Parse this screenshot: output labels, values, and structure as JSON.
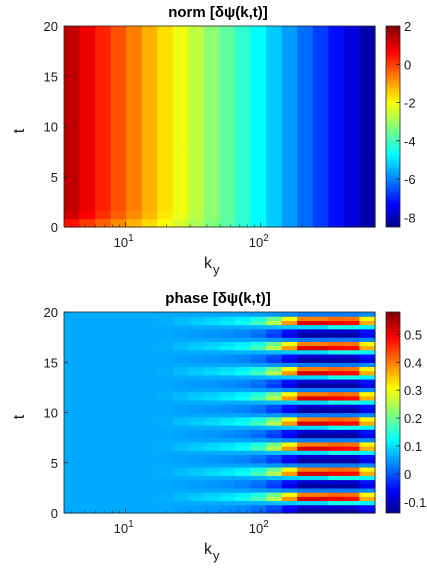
{
  "chart_data": [
    {
      "type": "heatmap",
      "title": "norm [δψ(k,t)]",
      "xlabel": "k",
      "xlabel_sub": "y",
      "ylabel": "t",
      "x_scale": "log",
      "xlim": [
        3.5,
        700
      ],
      "ylim": [
        0,
        20
      ],
      "x_ticks": [
        {
          "value": 10,
          "base": "10",
          "exp": "1"
        },
        {
          "value": 100,
          "base": "10",
          "exp": "2"
        }
      ],
      "y_ticks": [
        0,
        5,
        10,
        15,
        20
      ],
      "colorbar": {
        "range": [
          -8.5,
          2
        ],
        "ticks": [
          "2",
          "0",
          "-2",
          "-4",
          "-6",
          "-8"
        ],
        "values": [
          2,
          0,
          -2,
          -4,
          -6,
          -8
        ]
      },
      "colormap": "jet",
      "description_of_field": {
        "value_at_k_min": 1.6,
        "value_at_k_max": -8.3,
        "initial_transient_t": 1.5
      }
    },
    {
      "type": "heatmap",
      "title": "phase [δψ(k,t)]",
      "xlabel": "k",
      "xlabel_sub": "y",
      "ylabel": "t",
      "x_scale": "log",
      "xlim": [
        3.5,
        700
      ],
      "ylim": [
        0,
        20
      ],
      "x_ticks": [
        {
          "value": 10,
          "base": "10",
          "exp": "1"
        },
        {
          "value": 100,
          "base": "10",
          "exp": "2"
        }
      ],
      "y_ticks": [
        0,
        5,
        10,
        15,
        20
      ],
      "colorbar": {
        "range": [
          -0.14,
          0.58
        ],
        "ticks": [
          "0.5",
          "0.4",
          "0.3",
          "0.2",
          "0.1",
          "0",
          "-0.1"
        ],
        "values": [
          0.5,
          0.4,
          0.3,
          0.2,
          0.1,
          0,
          -0.1
        ]
      },
      "colormap": "jet",
      "baseline_value": 0.0,
      "oscillation_period_t": 2.5,
      "peak_value": 0.56,
      "peak_k": 300
    }
  ]
}
